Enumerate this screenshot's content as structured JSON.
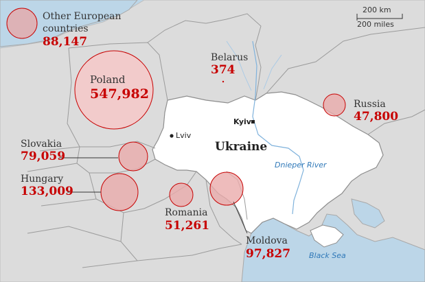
{
  "map": {
    "labels": {
      "other_european": {
        "name_line1": "Other European",
        "name_line2": "countries",
        "value": "88,147"
      },
      "poland": {
        "name": "Poland",
        "value": "547,982"
      },
      "belarus": {
        "name": "Belarus",
        "value": "374"
      },
      "russia": {
        "name": "Russia",
        "value": "47,800"
      },
      "slovakia": {
        "name": "Slovakia",
        "value": "79,059"
      },
      "hungary": {
        "name": "Hungary",
        "value": "133,009"
      },
      "romania": {
        "name": "Romania",
        "value": "51,261"
      },
      "moldova": {
        "name": "Moldova",
        "value": "97,827"
      },
      "ukraine": "Ukraine"
    },
    "cities": {
      "kyiv": "Kyiv",
      "lviv": "Lviv"
    },
    "water": {
      "dnieper": "Dnieper River",
      "black_sea": "Black Sea"
    },
    "scale": {
      "km": "200 km",
      "miles": "200 miles"
    },
    "colors": {
      "sea": "#bcd6e8",
      "land": "#dcdcdc",
      "ukraine": "#ffffff",
      "border": "#9b9b9b",
      "bubble_fill": "#f2c7c7",
      "bubble_stroke": "#c70000",
      "value_text": "#c70000"
    }
  }
}
